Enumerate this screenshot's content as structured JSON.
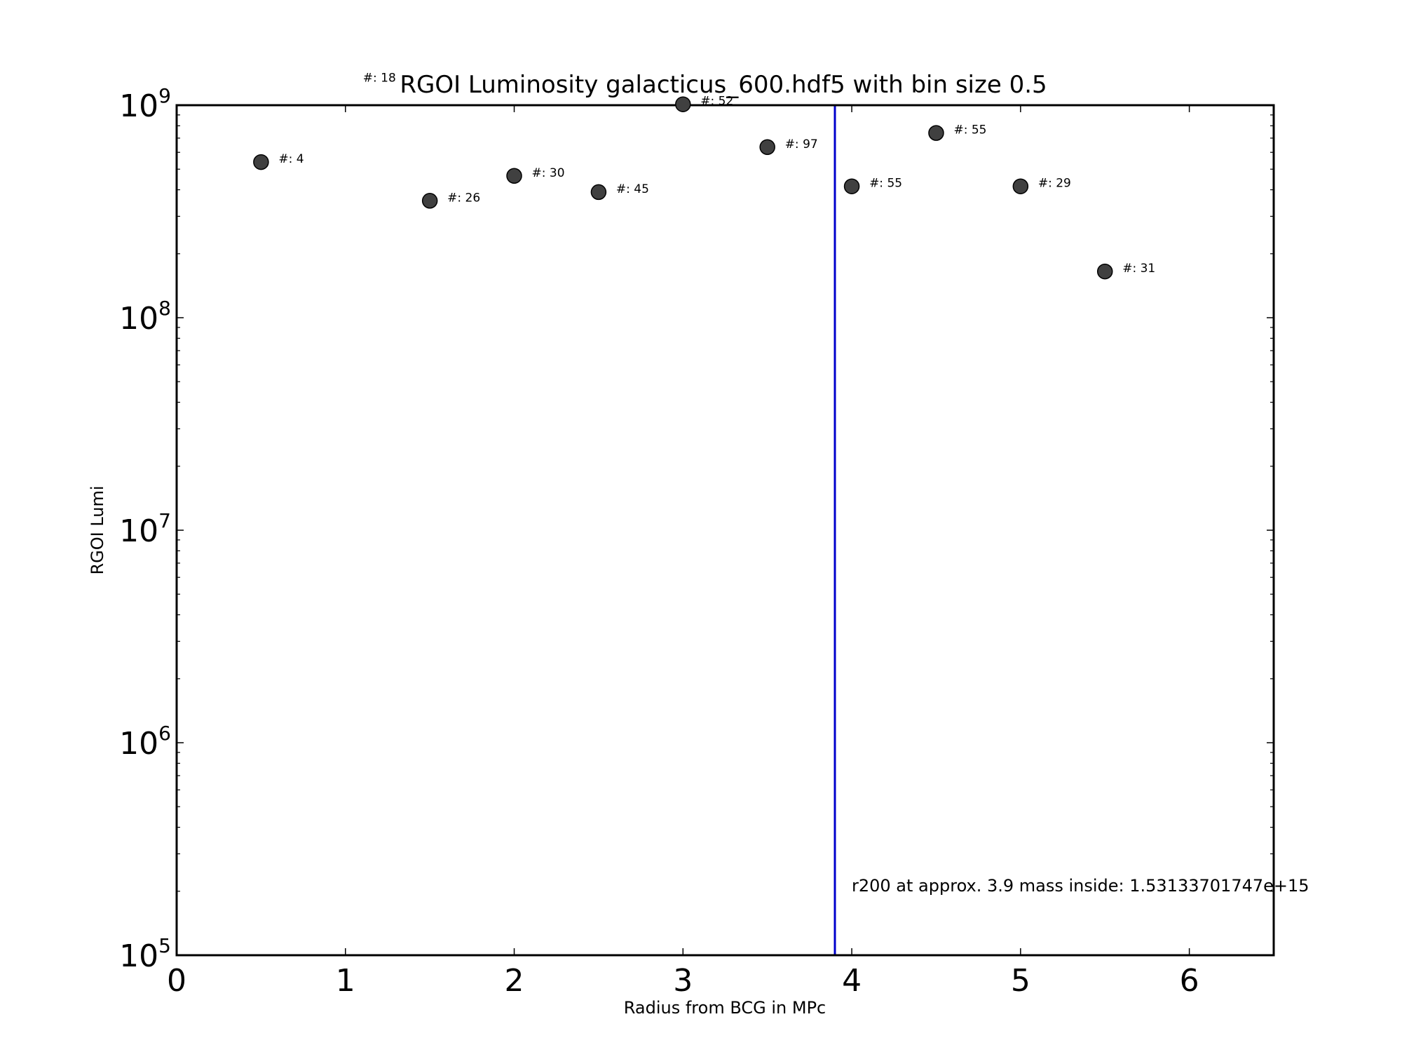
{
  "chart_data": {
    "type": "scatter",
    "title": "RGOI Luminosity galacticus_600.hdf5 with bin size 0.5",
    "xlabel": "Radius from BCG in MPc",
    "ylabel": "RGOI Lumi",
    "xlim": [
      0,
      6.5
    ],
    "ylim": [
      100000,
      1000000000
    ],
    "yscale": "log",
    "x_ticks": [
      "0",
      "1",
      "2",
      "3",
      "4",
      "5",
      "6"
    ],
    "y_ticks": [
      {
        "base": "10",
        "exp": "5"
      },
      {
        "base": "10",
        "exp": "6"
      },
      {
        "base": "10",
        "exp": "7"
      },
      {
        "base": "10",
        "exp": "8"
      },
      {
        "base": "10",
        "exp": "9"
      }
    ],
    "points": [
      {
        "x": 0.5,
        "y": 540000000,
        "label": "#: 4"
      },
      {
        "x": 1.0,
        "y": 1300000000,
        "label": "#: 18"
      },
      {
        "x": 1.5,
        "y": 355000000,
        "label": "#: 26"
      },
      {
        "x": 2.0,
        "y": 465000000,
        "label": "#: 30"
      },
      {
        "x": 2.5,
        "y": 390000000,
        "label": "#: 45"
      },
      {
        "x": 3.0,
        "y": 1010000000,
        "label": "#: 52"
      },
      {
        "x": 3.5,
        "y": 635000000,
        "label": "#: 97"
      },
      {
        "x": 4.0,
        "y": 415000000,
        "label": "#: 55"
      },
      {
        "x": 4.5,
        "y": 740000000,
        "label": "#: 55"
      },
      {
        "x": 5.0,
        "y": 415000000,
        "label": "#: 29"
      },
      {
        "x": 5.5,
        "y": 165000000,
        "label": "#: 31"
      }
    ],
    "vline": {
      "x": 3.9,
      "color": "#0000cc"
    },
    "annotation": "r200 at approx. 3.9 mass inside: 1.53133701747e+15",
    "marker_color": "#404040",
    "grid": false
  }
}
